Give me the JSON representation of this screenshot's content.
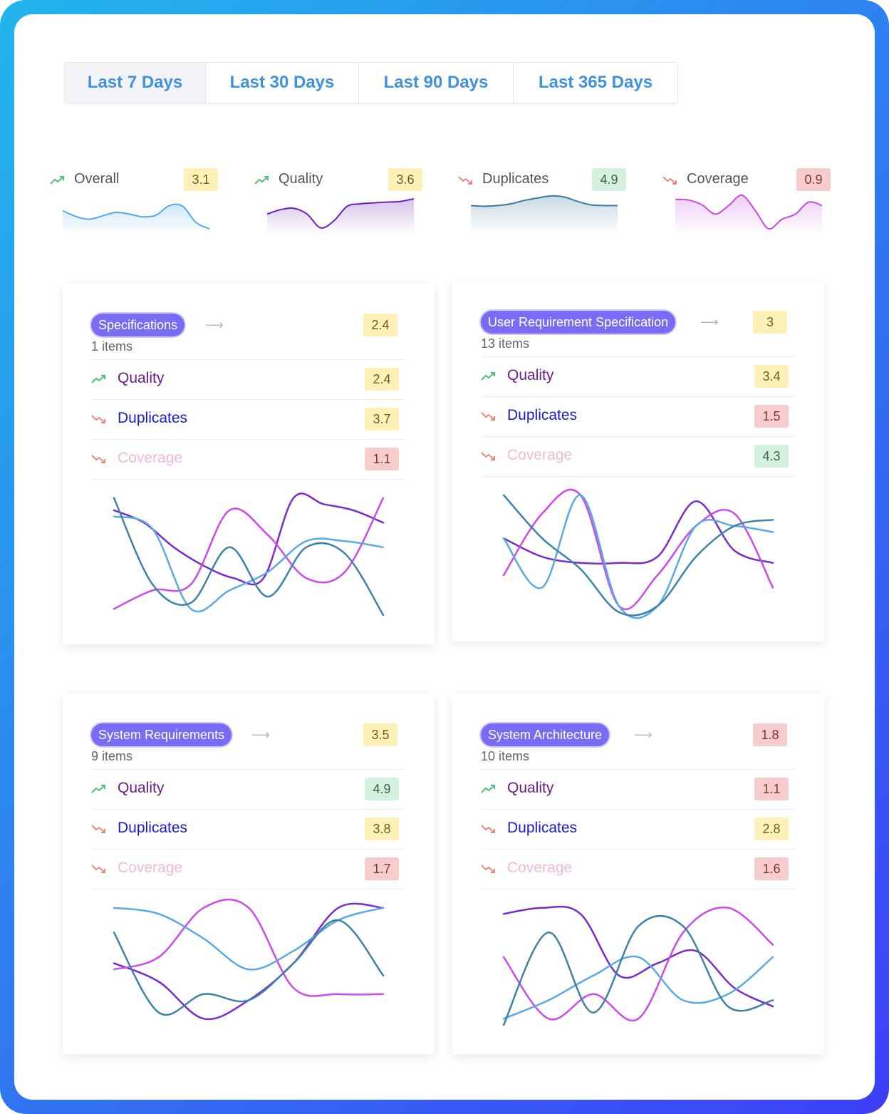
{
  "tabs": [
    {
      "label": "Last 7 Days",
      "active": true
    },
    {
      "label": "Last 30 Days",
      "active": false
    },
    {
      "label": "Last 90 Days",
      "active": false
    },
    {
      "label": "Last 365 Days",
      "active": false
    }
  ],
  "sparklines": [
    {
      "label": "Overall",
      "value": "3.1",
      "trend": "up",
      "badge": "yellow",
      "color": "#56a9ec",
      "series": [
        0.45,
        0.62,
        0.7,
        0.6,
        0.5,
        0.55,
        0.63,
        0.58,
        0.3,
        0.32,
        0.8,
        0.98
      ]
    },
    {
      "label": "Quality",
      "value": "3.6",
      "trend": "up",
      "badge": "yellow",
      "color": "#6e22b6",
      "series": [
        0.55,
        0.42,
        0.38,
        0.55,
        0.95,
        0.75,
        0.32,
        0.25,
        0.22,
        0.2,
        0.18,
        0.1
      ]
    },
    {
      "label": "Duplicates",
      "value": "4.9",
      "trend": "down",
      "badge": "green",
      "color": "#3a7aa3",
      "series": [
        0.3,
        0.32,
        0.3,
        0.25,
        0.15,
        0.08,
        0.02,
        0.05,
        0.18,
        0.28,
        0.3,
        0.3
      ]
    },
    {
      "label": "Coverage",
      "value": "0.9",
      "trend": "down",
      "badge": "red",
      "color": "#c64be6",
      "series": [
        0.12,
        0.14,
        0.28,
        0.55,
        0.3,
        0.0,
        0.45,
        0.98,
        0.7,
        0.55,
        0.2,
        0.3
      ]
    }
  ],
  "cards": [
    {
      "title": "Specifications",
      "items": "1 items",
      "value": "2.4",
      "badge": "yellow",
      "rows": [
        {
          "label": "Quality",
          "value": "2.4",
          "badge": "yellow",
          "trend": "up"
        },
        {
          "label": "Duplicates",
          "value": "3.7",
          "badge": "yellow",
          "trend": "down"
        },
        {
          "label": "Coverage",
          "value": "1.1",
          "badge": "red",
          "trend": "down"
        }
      ],
      "series": [
        {
          "color": "#7b2cc9",
          "values": [
            0.85,
            0.75,
            0.55,
            0.4,
            0.3,
            0.3,
            0.95,
            0.9,
            0.85,
            0.75
          ]
        },
        {
          "color": "#cc4be8",
          "values": [
            0.05,
            0.2,
            0.25,
            0.85,
            0.65,
            0.3,
            0.35,
            0.95
          ]
        },
        {
          "color": "#5aa9e4",
          "values": [
            0.8,
            0.7,
            0.05,
            0.2,
            0.35,
            0.6,
            0.6,
            0.55
          ]
        },
        {
          "color": "#3e82a7",
          "values": [
            0.95,
            0.25,
            0.1,
            0.55,
            0.15,
            0.55,
            0.5,
            0.0
          ]
        }
      ]
    },
    {
      "title": "User Requirement Specification",
      "items": "13 items",
      "value": "3",
      "badge": "yellow",
      "rows": [
        {
          "label": "Quality",
          "value": "3.4",
          "badge": "yellow",
          "trend": "up"
        },
        {
          "label": "Duplicates",
          "value": "1.5",
          "badge": "red",
          "trend": "down"
        },
        {
          "label": "Coverage",
          "value": "4.3",
          "badge": "green",
          "trend": "down"
        }
      ],
      "series": [
        {
          "color": "#7b2cc9",
          "values": [
            0.6,
            0.45,
            0.4,
            0.4,
            0.45,
            0.9,
            0.5,
            0.4
          ]
        },
        {
          "color": "#cc4be8",
          "values": [
            0.3,
            0.8,
            0.95,
            0.05,
            0.3,
            0.7,
            0.8,
            0.2
          ]
        },
        {
          "color": "#5aa9e4",
          "values": [
            0.6,
            0.2,
            0.95,
            0.05,
            0.05,
            0.7,
            0.7,
            0.65
          ]
        },
        {
          "color": "#3e82a7",
          "values": [
            0.95,
            0.6,
            0.35,
            0.0,
            0.05,
            0.45,
            0.7,
            0.75
          ]
        }
      ]
    },
    {
      "title": "System Requirements",
      "items": "9 items",
      "value": "3.5",
      "badge": "yellow",
      "rows": [
        {
          "label": "Quality",
          "value": "4.9",
          "badge": "green",
          "trend": "up"
        },
        {
          "label": "Duplicates",
          "value": "3.8",
          "badge": "yellow",
          "trend": "down"
        },
        {
          "label": "Coverage",
          "value": "1.7",
          "badge": "red",
          "trend": "down"
        }
      ],
      "series": [
        {
          "color": "#7b2cc9",
          "values": [
            0.5,
            0.35,
            0.05,
            0.2,
            0.5,
            0.95,
            0.95
          ]
        },
        {
          "color": "#cc4be8",
          "values": [
            0.45,
            0.55,
            0.95,
            0.95,
            0.3,
            0.25,
            0.25
          ]
        },
        {
          "color": "#5aa9e4",
          "values": [
            0.95,
            0.9,
            0.7,
            0.45,
            0.6,
            0.85,
            0.95
          ]
        },
        {
          "color": "#3e82a7",
          "values": [
            0.75,
            0.1,
            0.25,
            0.2,
            0.5,
            0.85,
            0.4
          ]
        }
      ]
    },
    {
      "title": "System Architecture",
      "items": "10 items",
      "value": "1.8",
      "badge": "red",
      "rows": [
        {
          "label": "Quality",
          "value": "1.1",
          "badge": "red",
          "trend": "up"
        },
        {
          "label": "Duplicates",
          "value": "2.8",
          "badge": "yellow",
          "trend": "down"
        },
        {
          "label": "Coverage",
          "value": "1.6",
          "badge": "red",
          "trend": "down"
        }
      ],
      "series": [
        {
          "color": "#7b2cc9",
          "values": [
            0.9,
            0.95,
            0.9,
            0.4,
            0.5,
            0.6,
            0.3,
            0.15
          ]
        },
        {
          "color": "#cc4be8",
          "values": [
            0.55,
            0.05,
            0.25,
            0.05,
            0.75,
            0.95,
            0.65
          ]
        },
        {
          "color": "#5aa9e4",
          "values": [
            0.05,
            0.2,
            0.4,
            0.55,
            0.2,
            0.25,
            0.55
          ]
        },
        {
          "color": "#3e82a7",
          "values": [
            0.0,
            0.75,
            0.1,
            0.8,
            0.8,
            0.15,
            0.2
          ]
        }
      ]
    }
  ]
}
